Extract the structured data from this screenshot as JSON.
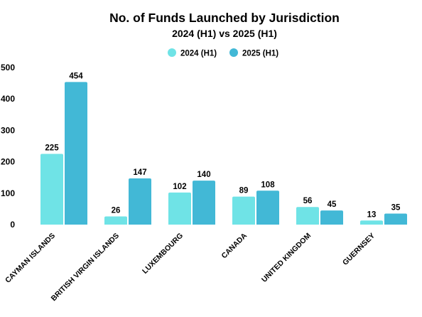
{
  "chart_data": {
    "type": "bar",
    "title": "No. of Funds Launched by Jurisdiction",
    "subtitle": "2024 (H1) vs 2025 (H1)",
    "categories": [
      "CAYMAN ISLANDS",
      "BRITISH VIRGIN ISLANDS",
      "LUXEMBOURG",
      "CANADA",
      "UNITED KINGDOM",
      "GUERNSEY"
    ],
    "series": [
      {
        "name": "2024 (H1)",
        "color": "#6fe3e6",
        "values": [
          225,
          26,
          102,
          89,
          56,
          13
        ]
      },
      {
        "name": "2025 (H1)",
        "color": "#42b8d6",
        "values": [
          454,
          147,
          140,
          108,
          45,
          35
        ]
      }
    ],
    "ylim": [
      0,
      500
    ],
    "yticks": [
      0,
      100,
      200,
      300,
      400,
      500
    ],
    "xlabel": "",
    "ylabel": "",
    "legend_position": "top-center",
    "grid": false,
    "data_labels": true
  }
}
